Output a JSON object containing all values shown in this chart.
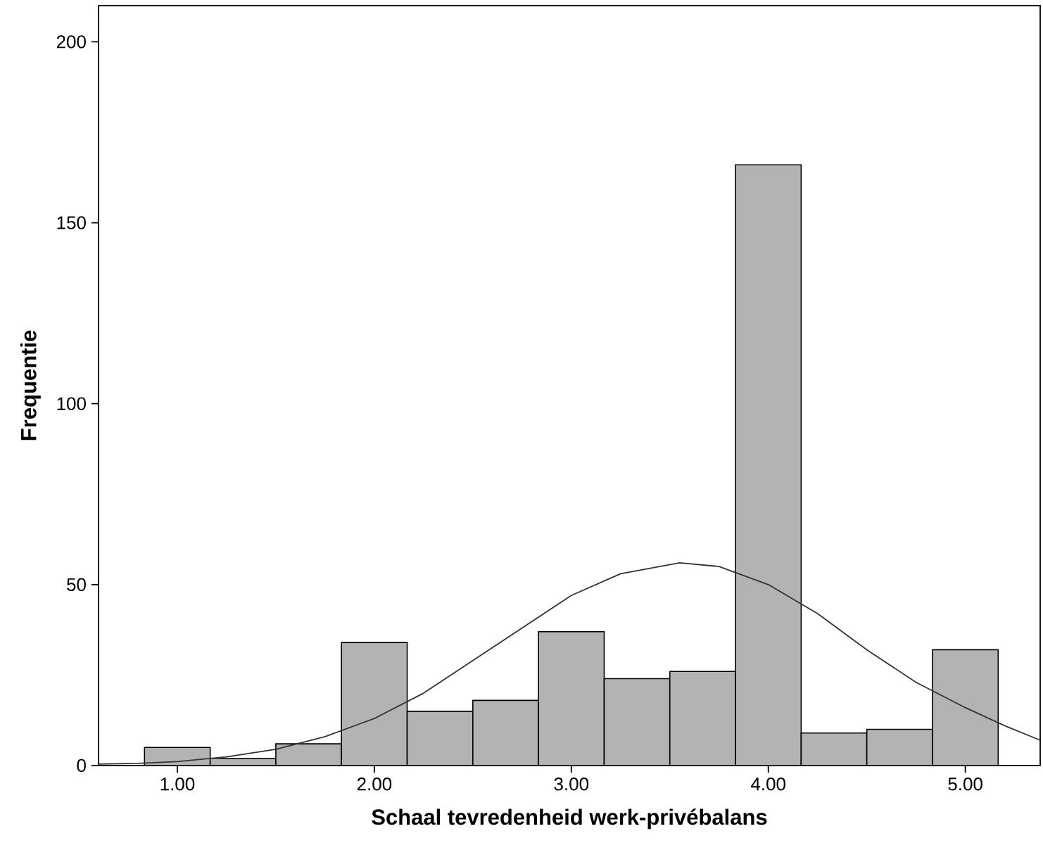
{
  "chart_data": {
    "type": "histogram",
    "xlabel": "Schaal tevredenheid werk-privébalans",
    "ylabel": "Frequentie",
    "xlim": [
      0.6,
      5.38
    ],
    "ylim": [
      0,
      210
    ],
    "xticks": [
      {
        "value": 1,
        "label": "1.00"
      },
      {
        "value": 2,
        "label": "2.00"
      },
      {
        "value": 3,
        "label": "3.00"
      },
      {
        "value": 4,
        "label": "4.00"
      },
      {
        "value": 5,
        "label": "5.00"
      }
    ],
    "yticks": [
      0,
      50,
      100,
      150,
      200
    ],
    "series": [
      {
        "color": "#b3b3b3",
        "bins": [
          0.8333,
          1.1667,
          1.5,
          1.8333,
          2.1667,
          2.5,
          2.8333,
          3.1667,
          3.5,
          3.8333,
          4.1667,
          4.5,
          4.8333,
          5.1667
        ],
        "values": [
          5,
          2,
          6,
          34,
          15,
          18,
          37,
          24,
          26,
          166,
          9,
          10,
          32
        ]
      },
      {
        "type": "line",
        "color": "#333333",
        "x": [
          0.6,
          0.8,
          1.0,
          1.25,
          1.5,
          1.75,
          2.0,
          2.25,
          2.5,
          2.75,
          3.0,
          3.25,
          3.55,
          3.75,
          4.0,
          4.25,
          4.5,
          4.75,
          5.0,
          5.2,
          5.38
        ],
        "values": [
          0.4,
          0.6,
          1.1,
          2.4,
          4.5,
          8,
          13,
          20,
          29,
          38,
          47,
          53,
          56,
          55,
          50,
          42,
          32,
          23,
          16,
          11,
          7
        ]
      }
    ]
  }
}
